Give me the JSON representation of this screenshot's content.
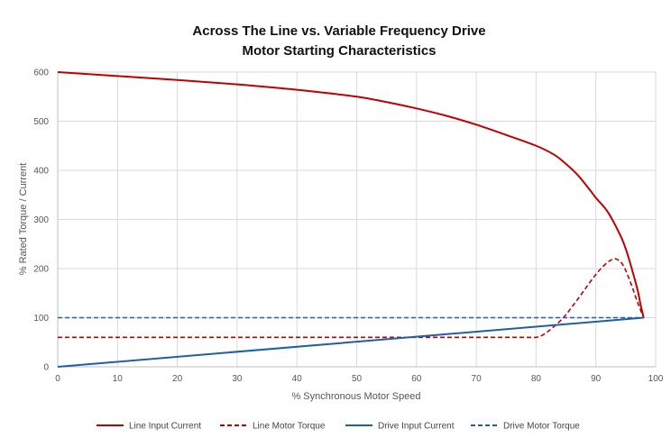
{
  "chart_data": {
    "type": "line",
    "title": [
      "Across The Line vs. Variable Frequency Drive",
      "Motor Starting Characteristics"
    ],
    "xlabel": "% Synchronous Motor Speed",
    "ylabel": "% Rated Torque / Current",
    "xlim": [
      0,
      100
    ],
    "ylim": [
      0,
      600
    ],
    "xticks": [
      0,
      10,
      20,
      30,
      40,
      50,
      60,
      70,
      80,
      90,
      100
    ],
    "yticks": [
      0,
      100,
      200,
      300,
      400,
      500,
      600
    ],
    "grid": true,
    "legend_position": "bottom",
    "series": [
      {
        "name": "Line Input Current",
        "color": "#c00000",
        "dash": "solid",
        "x": [
          0,
          10,
          20,
          30,
          40,
          50,
          55,
          60,
          65,
          70,
          75,
          80,
          83,
          85,
          87,
          89,
          90,
          92,
          94,
          95,
          96,
          97,
          97.5,
          98
        ],
        "y": [
          600,
          592,
          584,
          575,
          564,
          550,
          539,
          526,
          511,
          493,
          472,
          450,
          432,
          413,
          390,
          360,
          344,
          315,
          270,
          240,
          200,
          155,
          125,
          100
        ]
      },
      {
        "name": "Line Motor Torque",
        "color": "#c00000",
        "dash": "dashed",
        "x": [
          0,
          10,
          20,
          30,
          40,
          50,
          60,
          70,
          75,
          78,
          80,
          81,
          82,
          83,
          84,
          85,
          86,
          87,
          88,
          89,
          90,
          91,
          92,
          92.5,
          93,
          93.5,
          94,
          94.5,
          95,
          96,
          97,
          98
        ],
        "y": [
          60,
          60,
          60,
          60,
          60,
          60,
          60,
          60,
          60,
          60,
          60,
          64,
          72,
          82,
          93,
          106,
          122,
          138,
          155,
          172,
          188,
          202,
          213,
          217,
          220,
          219,
          215,
          208,
          196,
          165,
          130,
          100
        ]
      },
      {
        "name": "Drive Input Current",
        "color": "#1f5fa8",
        "dash": "solid",
        "x": [
          0,
          98
        ],
        "y": [
          0,
          100
        ]
      },
      {
        "name": "Drive Motor Torque",
        "color": "#1f5fa8",
        "dash": "dashed",
        "x": [
          0,
          98
        ],
        "y": [
          100,
          100
        ]
      }
    ]
  }
}
